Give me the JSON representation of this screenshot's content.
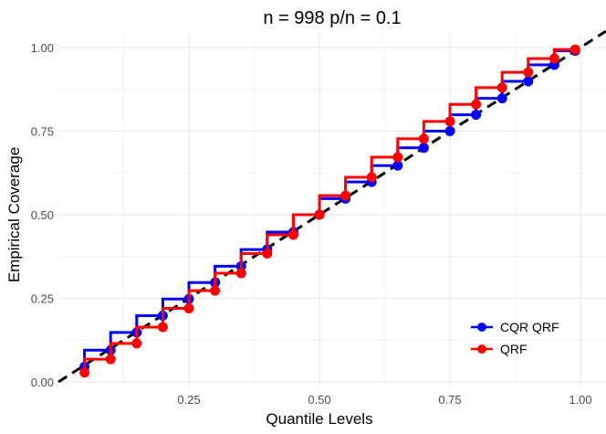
{
  "chart_data": {
    "type": "line",
    "title": "n = 998 p/n = 0.1",
    "xlabel": "Quantile Levels",
    "ylabel": "Empirical Coverage",
    "xlim": [
      0.0,
      1.05
    ],
    "ylim": [
      0.0,
      1.03
    ],
    "x_ticks": [
      0.25,
      0.5,
      0.75,
      1.0
    ],
    "x_tick_labels": [
      "0.25",
      "0.50",
      "0.75",
      "1.00"
    ],
    "y_ticks": [
      0.0,
      0.25,
      0.5,
      0.75,
      1.0
    ],
    "y_tick_labels": [
      "0.00",
      "0.25",
      "0.50",
      "0.75",
      "1.00"
    ],
    "grid": true,
    "legend_position": "bottom-right inside",
    "reference_line": {
      "type": "diagonal y=x",
      "style": "dashed",
      "color": "#000000"
    },
    "step_style": "vertical-then-horizontal",
    "x": [
      0.05,
      0.1,
      0.15,
      0.2,
      0.25,
      0.3,
      0.35,
      0.4,
      0.45,
      0.5,
      0.55,
      0.6,
      0.65,
      0.7,
      0.75,
      0.8,
      0.85,
      0.9,
      0.95,
      0.99
    ],
    "series": [
      {
        "name": "CQR QRF",
        "color": "#0000ff",
        "values": [
          0.045,
          0.095,
          0.148,
          0.198,
          0.248,
          0.297,
          0.346,
          0.396,
          0.448,
          0.5,
          0.548,
          0.598,
          0.647,
          0.7,
          0.75,
          0.799,
          0.848,
          0.899,
          0.948,
          0.99
        ]
      },
      {
        "name": "QRF",
        "color": "#ff0000",
        "values": [
          0.028,
          0.068,
          0.115,
          0.164,
          0.22,
          0.273,
          0.325,
          0.384,
          0.44,
          0.5,
          0.557,
          0.612,
          0.672,
          0.727,
          0.779,
          0.83,
          0.88,
          0.926,
          0.967,
          0.994
        ]
      }
    ]
  },
  "legend": {
    "items": [
      {
        "label": "CQR QRF",
        "color": "#0000ff"
      },
      {
        "label": "QRF",
        "color": "#ff0000"
      }
    ]
  }
}
